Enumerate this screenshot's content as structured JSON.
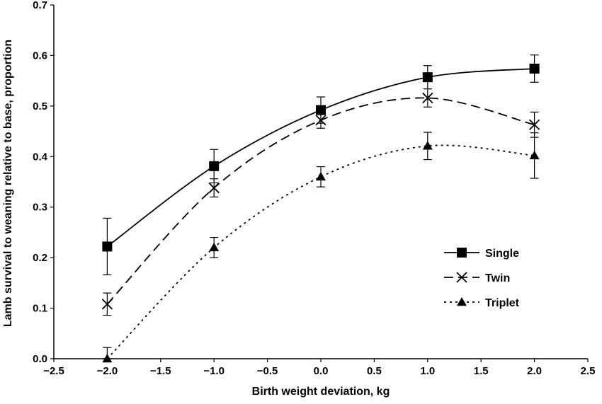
{
  "chart_data": {
    "type": "line",
    "title": "",
    "xlabel": "Birth weight deviation, kg",
    "ylabel": "Lamb survival to weaning relative to base, proportion",
    "xlim": [
      -2.5,
      2.5
    ],
    "ylim": [
      0.0,
      0.7
    ],
    "x_ticks": [
      "−2.5",
      "−2.0",
      "−1.5",
      "−1.0",
      "−0.5",
      "0.0",
      "0.5",
      "1.0",
      "1.5",
      "2.0",
      "2.5"
    ],
    "y_ticks": [
      "0.0",
      "0.1",
      "0.2",
      "0.3",
      "0.4",
      "0.5",
      "0.6",
      "0.7"
    ],
    "grid": false,
    "legend_position": "right",
    "x": [
      -2.0,
      -1.0,
      0.0,
      1.0,
      2.0
    ],
    "series": [
      {
        "name": "Single",
        "marker": "square",
        "line": "solid",
        "values": [
          0.222,
          0.381,
          0.492,
          0.557,
          0.574
        ],
        "error": [
          0.056,
          0.033,
          0.026,
          0.023,
          0.027
        ]
      },
      {
        "name": "Twin",
        "marker": "x",
        "line": "long-dash",
        "values": [
          0.108,
          0.338,
          0.472,
          0.516,
          0.463
        ],
        "error": [
          0.022,
          0.018,
          0.016,
          0.018,
          0.025
        ]
      },
      {
        "name": "Triplet",
        "marker": "triangle",
        "line": "dotted",
        "values": [
          0.0,
          0.22,
          0.36,
          0.421,
          0.402
        ],
        "error": [
          0.022,
          0.02,
          0.02,
          0.027,
          0.045
        ]
      }
    ]
  }
}
